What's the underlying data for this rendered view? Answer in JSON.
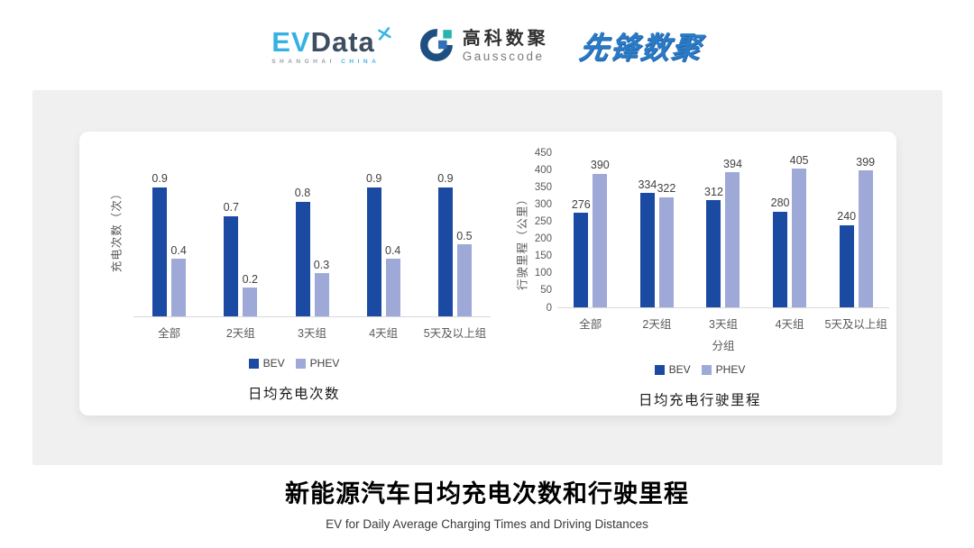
{
  "header": {
    "evdata_logo": {
      "ev": "EV",
      "data": "Data",
      "sub_shanghai": "SHANGHAI",
      "sub_china": "CHINA"
    },
    "gausscode_logo": {
      "name_cn": "高科数聚",
      "name_en": "Gausscode"
    },
    "pioneer_logo": {
      "text": "先锋数聚"
    }
  },
  "colors": {
    "bev": "#1A4AA2",
    "phev": "#9EA9D8",
    "panel_bg": "#F0F0F1",
    "card_bg": "#FFFFFF",
    "axis_text": "#595959",
    "data_label_text": "#404040",
    "evdata_blue": "#35B1E4",
    "pioneer_blue": "#2A7AC6"
  },
  "chart_data": [
    {
      "type": "bar",
      "title": "日均充电次数",
      "ylabel": "充电次数（次）",
      "xlabel": "",
      "categories": [
        "全部",
        "2天组",
        "3天组",
        "4天组",
        "5天及以上组"
      ],
      "series": [
        {
          "name": "BEV",
          "color": "#1A4AA2",
          "values": [
            0.9,
            0.7,
            0.8,
            0.9,
            0.9
          ]
        },
        {
          "name": "PHEV",
          "color": "#9EA9D8",
          "values": [
            0.4,
            0.2,
            0.3,
            0.4,
            0.5
          ]
        }
      ],
      "ylim": [
        0,
        1.2
      ],
      "yticks": null,
      "grid": false,
      "legend_position": "bottom"
    },
    {
      "type": "bar",
      "title": "日均充电行驶里程",
      "ylabel": "行驶里程（公里）",
      "xlabel": "分组",
      "categories": [
        "全部",
        "2天组",
        "3天组",
        "4天组",
        "5天及以上组"
      ],
      "series": [
        {
          "name": "BEV",
          "color": "#1A4AA2",
          "values": [
            276,
            334,
            312,
            280,
            240
          ]
        },
        {
          "name": "PHEV",
          "color": "#9EA9D8",
          "values": [
            390,
            322,
            394,
            405,
            399
          ]
        }
      ],
      "ylim": [
        0,
        450
      ],
      "yticks": [
        0,
        50,
        100,
        150,
        200,
        250,
        300,
        350,
        400,
        450
      ],
      "grid": false,
      "legend_position": "bottom"
    }
  ],
  "footer": {
    "title_cn": "新能源汽车日均充电次数和行驶里程",
    "subtitle_en": "EV for Daily Average Charging Times and Driving Distances"
  }
}
